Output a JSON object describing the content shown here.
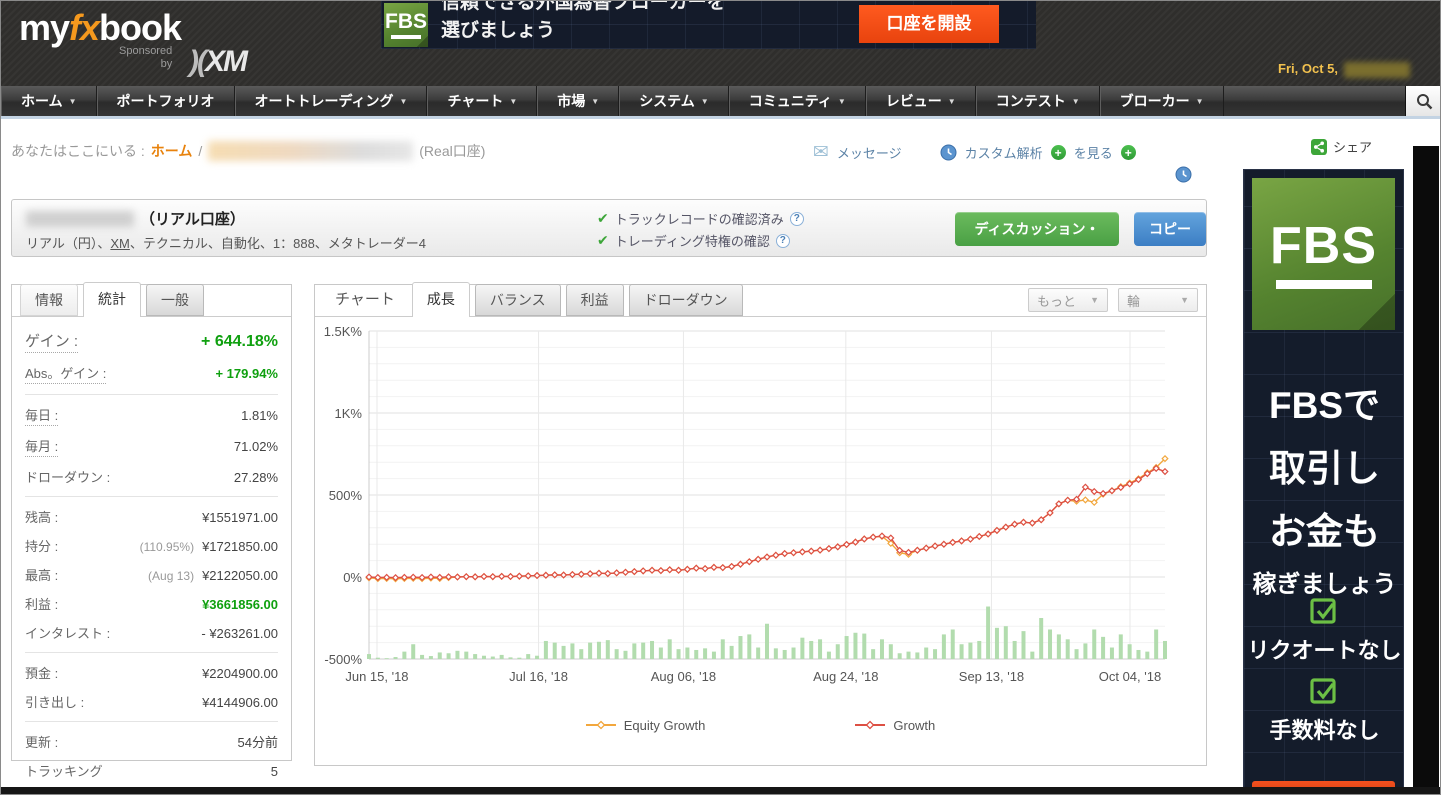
{
  "header": {
    "logo": {
      "my": "my",
      "fx": "fx",
      "book": "book",
      "sponsored": "Sponsored",
      "by": "by",
      "xm": "XM"
    },
    "date_label": "Fri, Oct 5,",
    "ad": {
      "logo_text": "FBS",
      "line1": "信頼できる外国為替ブローカーを",
      "line2": "選びましょう",
      "button": "口座を開設"
    }
  },
  "nav": {
    "items": [
      {
        "label": "ホーム",
        "dropdown": true
      },
      {
        "label": "ポートフォリオ",
        "dropdown": false
      },
      {
        "label": "オートトレーディング",
        "dropdown": true
      },
      {
        "label": "チャート",
        "dropdown": true
      },
      {
        "label": "市場",
        "dropdown": true
      },
      {
        "label": "システム",
        "dropdown": true
      },
      {
        "label": "コミュニティ",
        "dropdown": true
      },
      {
        "label": "レビュー",
        "dropdown": true
      },
      {
        "label": "コンテスト",
        "dropdown": true
      },
      {
        "label": "ブローカー",
        "dropdown": true
      }
    ],
    "search_icon": "magnifier"
  },
  "breadcrumb": {
    "you_are_here": "あなたはここにいる :",
    "home": "ホーム",
    "separator": "/",
    "account_suffix": "(Real口座)",
    "message_label": "メッセージ",
    "custom_analysis_label": "カスタム解析",
    "view_label": "を見る",
    "share_label": "シェア"
  },
  "account": {
    "title_suffix": "（リアル口座）",
    "details_prefix": "リアル（円）、",
    "broker": "XM",
    "details_suffix": "、テクニカル、自動化、1：888、メタトレーダー4",
    "verified_track_record": "トラックレコードの確認済み",
    "verified_trading": "トレーディング特権の確認",
    "discussion_button": "ディスカッション・",
    "copy_button": "コピー"
  },
  "stats_panel": {
    "tabs": [
      {
        "label": "情報",
        "state": "plain"
      },
      {
        "label": "統計",
        "state": "active"
      },
      {
        "label": "一般",
        "state": "inactive"
      }
    ],
    "rows": [
      {
        "label": "ゲイン :",
        "value": "+ 644.18%",
        "green": true,
        "dotted": true,
        "big": true
      },
      {
        "label": "Abs。ゲイン :",
        "value": "+ 179.94%",
        "green": true,
        "dotted": true
      },
      {
        "divider": true
      },
      {
        "label": "毎日 :",
        "value": "1.81%",
        "dotted": true
      },
      {
        "label": "毎月 :",
        "value": "71.02%",
        "dotted": true
      },
      {
        "label": "ドローダウン :",
        "value": "27.28%"
      },
      {
        "divider": true
      },
      {
        "label": "残高 :",
        "value": "¥1551971.00"
      },
      {
        "label": "持分 :",
        "note": "(110.95%)",
        "value": "¥1721850.00"
      },
      {
        "label": "最高 :",
        "note": "(Aug 13)",
        "value": "¥2122050.00"
      },
      {
        "label": "利益 :",
        "value": "¥3661856.00",
        "green": true
      },
      {
        "label": "インタレスト :",
        "value": "- ¥263261.00"
      },
      {
        "divider": true
      },
      {
        "label": "預金 :",
        "value": "¥2204900.00"
      },
      {
        "label": "引き出し :",
        "value": "¥4144906.00"
      },
      {
        "divider": true
      },
      {
        "label": "更新 :",
        "value": "54分前"
      },
      {
        "label": "トラッキング",
        "value": "5"
      }
    ]
  },
  "chart_panel": {
    "title_tab": "チャート",
    "tabs": [
      {
        "label": "成長",
        "state": "active"
      },
      {
        "label": "バランス",
        "state": "inactive"
      },
      {
        "label": "利益",
        "state": "inactive"
      },
      {
        "label": "ドローダウン",
        "state": "inactive"
      }
    ],
    "more_dropdown": "もっと",
    "lines_dropdown": "輪"
  },
  "chart_data": {
    "type": "line",
    "title": "成長",
    "ylim": [
      -500,
      1500
    ],
    "grid": true,
    "legend_position": "bottom",
    "yticks": [
      {
        "value": 1500,
        "label": "1.5K%"
      },
      {
        "value": 1000,
        "label": "1K%"
      },
      {
        "value": 500,
        "label": "500%"
      },
      {
        "value": 0,
        "label": "0%"
      },
      {
        "value": -500,
        "label": "-500%"
      }
    ],
    "xticks": [
      {
        "pos": 0.01,
        "label": "Jun 15, '18"
      },
      {
        "pos": 0.213,
        "label": "Jul 16, '18"
      },
      {
        "pos": 0.395,
        "label": "Aug 06, '18"
      },
      {
        "pos": 0.599,
        "label": "Aug 24, '18"
      },
      {
        "pos": 0.782,
        "label": "Sep 13, '18"
      },
      {
        "pos": 0.956,
        "label": "Oct 04, '18"
      }
    ],
    "series": [
      {
        "name": "Equity Growth",
        "color": "#f2a73d",
        "values": [
          -5,
          -10,
          -9,
          -11,
          -9,
          -8,
          -10,
          -7,
          -9,
          -4,
          0,
          2,
          1,
          3,
          2,
          4,
          3,
          5,
          7,
          9,
          11,
          13,
          12,
          15,
          17,
          20,
          23,
          21,
          25,
          29,
          33,
          37,
          41,
          39,
          44,
          41,
          47,
          54,
          51,
          59,
          57,
          64,
          78,
          93,
          108,
          122,
          133,
          143,
          148,
          153,
          158,
          164,
          173,
          184,
          198,
          213,
          232,
          243,
          248,
          205,
          148,
          138,
          163,
          176,
          189,
          200,
          211,
          220,
          231,
          247,
          262,
          284,
          304,
          322,
          334,
          329,
          349,
          391,
          446,
          468,
          462,
          470,
          455,
          505,
          526,
          551,
          573,
          599,
          636,
          668,
          722
        ]
      },
      {
        "name": "Growth",
        "color": "#dd5044",
        "values": [
          0,
          -3,
          -2,
          -4,
          -2,
          -1,
          -3,
          0,
          -2,
          1,
          0,
          2,
          1,
          3,
          2,
          4,
          3,
          5,
          7,
          9,
          11,
          13,
          12,
          15,
          17,
          20,
          23,
          21,
          25,
          29,
          33,
          37,
          41,
          39,
          44,
          41,
          47,
          54,
          51,
          59,
          57,
          64,
          78,
          93,
          108,
          122,
          133,
          143,
          148,
          153,
          158,
          164,
          173,
          184,
          198,
          213,
          232,
          243,
          250,
          238,
          162,
          150,
          163,
          176,
          189,
          200,
          211,
          220,
          231,
          247,
          262,
          284,
          304,
          322,
          334,
          329,
          349,
          391,
          446,
          468,
          474,
          548,
          521,
          509,
          526,
          546,
          568,
          594,
          630,
          662,
          643
        ]
      }
    ],
    "bars": {
      "name": "volume-bars",
      "color": "#b2dcae",
      "baseline": -500,
      "heights": [
        30,
        8,
        5,
        12,
        45,
        90,
        25,
        18,
        40,
        35,
        50,
        45,
        30,
        20,
        15,
        25,
        10,
        8,
        30,
        20,
        110,
        100,
        80,
        95,
        60,
        100,
        105,
        115,
        60,
        50,
        95,
        100,
        110,
        70,
        120,
        60,
        70,
        55,
        65,
        45,
        120,
        80,
        140,
        150,
        70,
        215,
        65,
        55,
        70,
        130,
        110,
        120,
        45,
        90,
        140,
        160,
        155,
        60,
        120,
        90,
        35,
        45,
        40,
        70,
        60,
        150,
        180,
        90,
        100,
        110,
        320,
        190,
        200,
        110,
        170,
        45,
        250,
        180,
        150,
        120,
        60,
        95,
        180,
        135,
        70,
        150,
        90,
        55,
        45,
        180,
        110
      ]
    }
  },
  "right_banner": {
    "logo_text": "FBS",
    "lines": [
      {
        "text": "FBSで",
        "size": "big"
      },
      {
        "text": "取引し",
        "size": "big"
      },
      {
        "text": "お金も",
        "size": "big"
      },
      {
        "text": "稼ぎましょう",
        "size": "small"
      }
    ],
    "features": [
      "リクオートなし",
      "手数料なし"
    ]
  },
  "colors": {
    "accent_orange": "#e8820c",
    "nav_blue_underline": "#c3d3e3",
    "growth_red": "#dd5044",
    "equity_orange": "#f2a73d",
    "bars_green": "#b2dcae",
    "button_green": "#49a044",
    "button_blue": "#3c7ec4",
    "ad_orange": "#f4511e",
    "date_yellow": "#f2c14e",
    "fbs_green": "#55832f"
  }
}
